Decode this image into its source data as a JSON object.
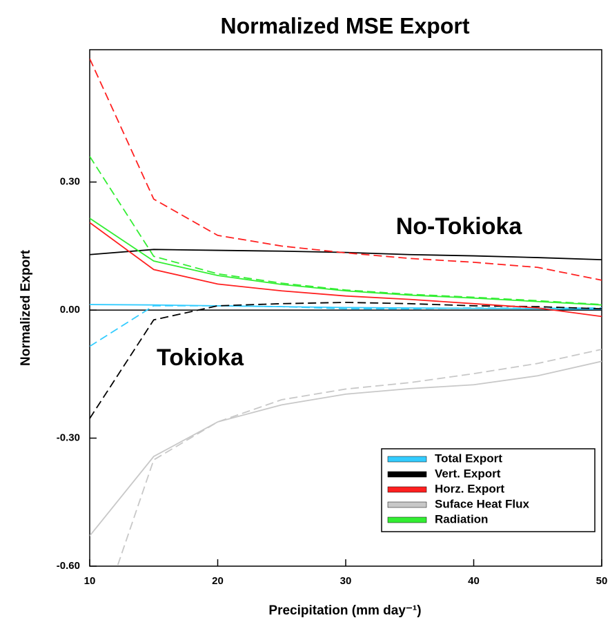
{
  "chart_data": {
    "type": "line",
    "title": "Normalized MSE Export",
    "xlabel": "Precipitation (mm day⁻¹)",
    "ylabel": "Normalized Export",
    "annotations": [
      "No-Tokioka",
      "Tokioka"
    ],
    "x": [
      10,
      15,
      20,
      25,
      30,
      35,
      40,
      45,
      50
    ],
    "series": [
      {
        "name": "Total Export",
        "color": "#33ccff",
        "values": [
          0.013,
          0.012,
          0.01,
          0.008,
          0.006,
          0.005,
          0.004,
          0.003,
          0.002
        ],
        "dashed_values": [
          -0.085,
          0.01,
          0.01,
          0.008,
          0.003,
          0.003,
          0.005,
          0.004,
          0.005
        ]
      },
      {
        "name": "Vert. Export",
        "color": "#000000",
        "values": [
          0.13,
          0.142,
          0.14,
          0.138,
          0.135,
          0.13,
          0.127,
          0.123,
          0.118
        ],
        "dashed_values": [
          -0.254,
          -0.023,
          0.01,
          0.015,
          0.018,
          0.015,
          0.01,
          0.008,
          0.003
        ]
      },
      {
        "name": "Horz. Export",
        "color": "#ff2020",
        "values": [
          0.205,
          0.095,
          0.061,
          0.045,
          0.033,
          0.025,
          0.015,
          0.005,
          -0.015
        ],
        "dashed_values": [
          0.589,
          0.26,
          0.175,
          0.15,
          0.134,
          0.121,
          0.112,
          0.1,
          0.07
        ]
      },
      {
        "name": "Suface Heat Flux",
        "color": "#c8c8c8",
        "values": [
          -0.529,
          -0.343,
          -0.262,
          -0.222,
          -0.197,
          -0.184,
          -0.175,
          -0.154,
          -0.12
        ],
        "dashed_values": [
          -0.79,
          -0.351,
          -0.262,
          -0.21,
          -0.185,
          -0.17,
          -0.149,
          -0.125,
          -0.092
        ]
      },
      {
        "name": "Radiation",
        "color": "#33ee33",
        "values": [
          0.215,
          0.115,
          0.081,
          0.06,
          0.045,
          0.035,
          0.028,
          0.02,
          0.012
        ],
        "dashed_values": [
          0.36,
          0.126,
          0.085,
          0.063,
          0.047,
          0.037,
          0.03,
          0.022,
          0.013
        ]
      }
    ],
    "xlim": [
      10,
      50
    ],
    "xticks": [
      10,
      20,
      30,
      40,
      50
    ],
    "ylim": [
      -0.6,
      0.61
    ],
    "yticks": [
      {
        "value": -0.6,
        "label": "-0.60"
      },
      {
        "value": -0.3,
        "label": "-0.30"
      },
      {
        "value": 0,
        "label": "0.00"
      },
      {
        "value": 0.3,
        "label": "0.30"
      }
    ],
    "grid": false
  }
}
